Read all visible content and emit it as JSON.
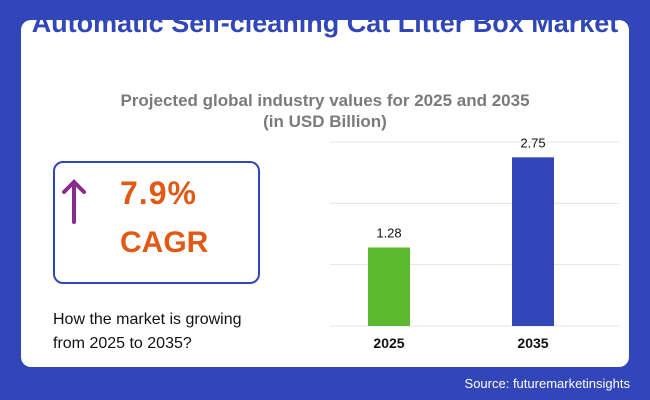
{
  "title": "Automatic Self-cleaning Cat Litter Box Market",
  "subtitle_line1": "Projected global industry values for 2025 and 2035",
  "subtitle_line2": "(in USD Billion)",
  "cagr": {
    "value": "7.9%",
    "label": "CAGR",
    "icon": "arrow-up-icon"
  },
  "question_line1": "How the market is growing",
  "question_line2": "from 2025 to 2035?",
  "source": "Source: futuremarketinsights",
  "chart_data": {
    "type": "bar",
    "categories": [
      "2025",
      "2035"
    ],
    "values": [
      1.28,
      2.75
    ],
    "value_labels": [
      "1.28",
      "2.75"
    ],
    "colors": [
      "#5cb82e",
      "#3146b8"
    ],
    "ylim": [
      0,
      3
    ],
    "grid": true,
    "title": "",
    "xlabel": "",
    "ylabel": ""
  }
}
